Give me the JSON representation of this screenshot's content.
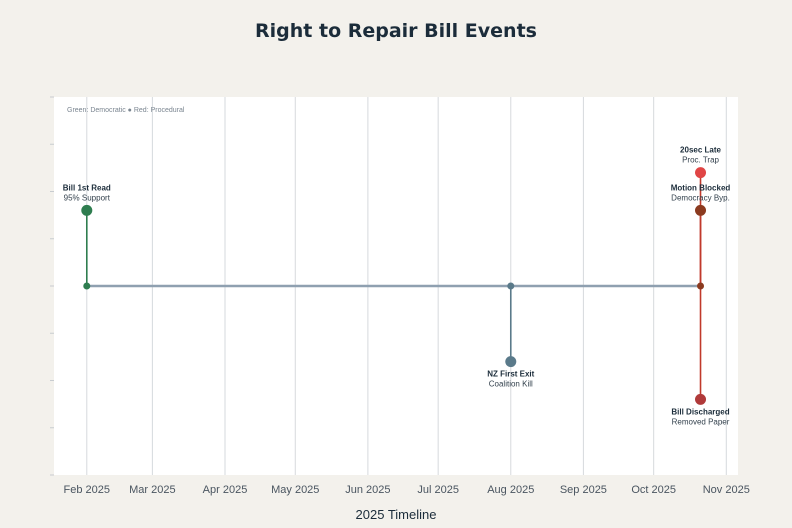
{
  "chart_data": {
    "type": "timeline",
    "title": "Right to Repair Bill Events",
    "xlabel": "2025 Timeline",
    "ylabel": "",
    "legend_note": "Green: Democratic ● Red: Procedural",
    "legend_placement": "top-left",
    "grid": true,
    "x_ticks": [
      {
        "date": "2025-02-01",
        "label": "Feb 2025"
      },
      {
        "date": "2025-03-01",
        "label": "Mar 2025"
      },
      {
        "date": "2025-04-01",
        "label": "Apr 2025"
      },
      {
        "date": "2025-05-01",
        "label": "May 2025"
      },
      {
        "date": "2025-06-01",
        "label": "Jun 2025"
      },
      {
        "date": "2025-07-01",
        "label": "Jul 2025"
      },
      {
        "date": "2025-08-01",
        "label": "Aug 2025"
      },
      {
        "date": "2025-09-01",
        "label": "Sep 2025"
      },
      {
        "date": "2025-10-01",
        "label": "Oct 2025"
      },
      {
        "date": "2025-11-01",
        "label": "Nov 2025"
      }
    ],
    "xlim": [
      "2025-01-18",
      "2025-11-06"
    ],
    "ylim": [
      -2,
      2
    ],
    "baseline_y": 0,
    "events": [
      {
        "date": "2025-02-01",
        "y": 0.8,
        "title": "Bill 1st Read",
        "subtitle": "95% Support",
        "color": "#2e7d4f"
      },
      {
        "date": "2025-08-01",
        "y": -0.8,
        "title": "NZ First Exit",
        "subtitle": "Coalition Kill",
        "color": "#5a7a8a"
      },
      {
        "date": "2025-10-21",
        "y": 0.8,
        "title": "Motion Blocked",
        "subtitle": "Democracy Byp.",
        "color": "#8b3a1f"
      },
      {
        "date": "2025-10-21",
        "y": 1.2,
        "title": "20sec Late",
        "subtitle": "Proc. Trap",
        "color": "#e04545"
      },
      {
        "date": "2025-10-21",
        "y": -1.2,
        "title": "Bill Discharged",
        "subtitle": "Removed Paper",
        "color": "#b03a3a"
      }
    ],
    "baseline_markers": [
      {
        "date": "2025-02-01",
        "color": "#2e7d4f"
      },
      {
        "date": "2025-08-01",
        "color": "#5a7a8a"
      },
      {
        "date": "2025-10-21",
        "color": "#8b3a1f"
      }
    ],
    "baseline_color": "#8fa0b0",
    "red_connector_color": "#c0392b"
  }
}
